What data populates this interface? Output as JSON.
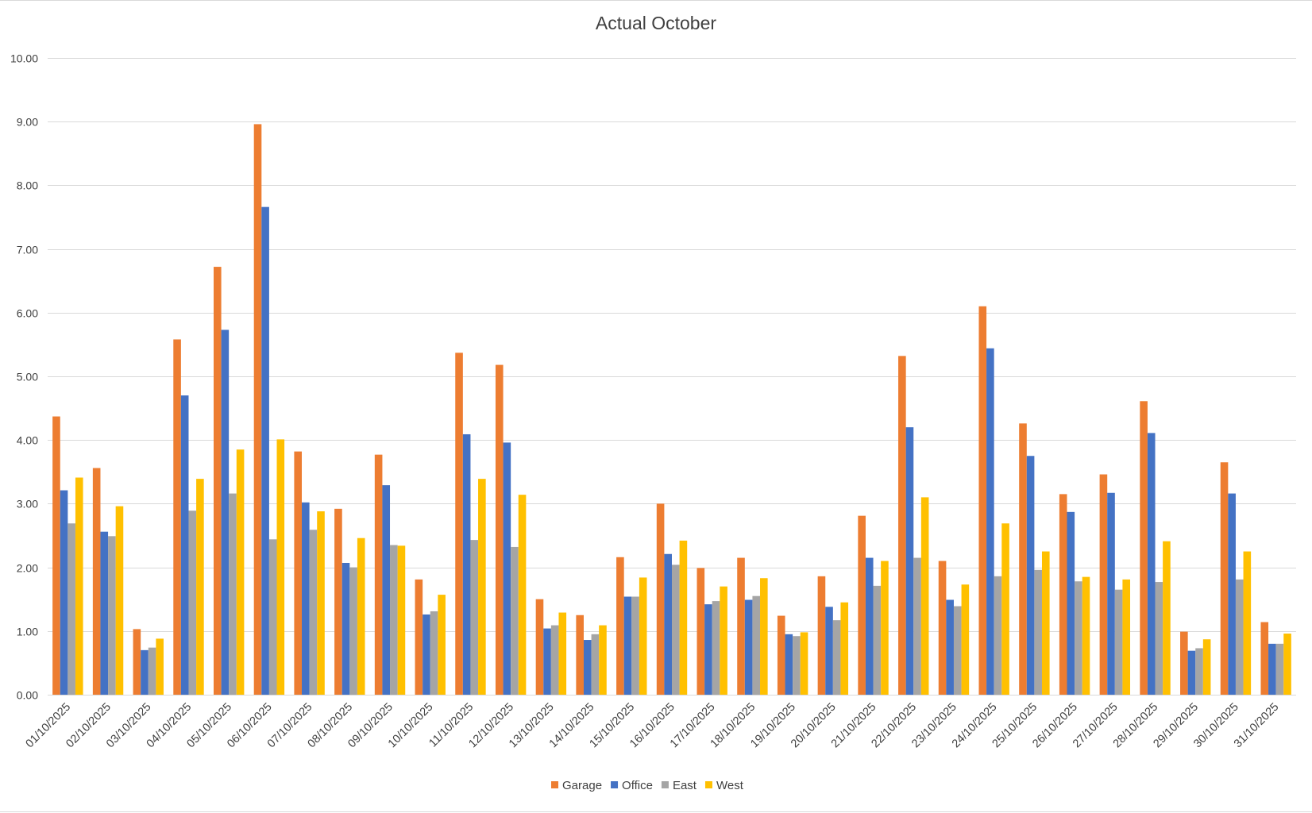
{
  "chart_data": {
    "type": "bar",
    "title": "Actual October",
    "xlabel": "",
    "ylabel": "",
    "ylim": [
      0,
      10
    ],
    "yticks": [
      "0.00",
      "1.00",
      "2.00",
      "3.00",
      "4.00",
      "5.00",
      "6.00",
      "7.00",
      "8.00",
      "9.00",
      "10.00"
    ],
    "grid": true,
    "legend_position": "bottom",
    "categories": [
      "01/10/2025",
      "02/10/2025",
      "03/10/2025",
      "04/10/2025",
      "05/10/2025",
      "06/10/2025",
      "07/10/2025",
      "08/10/2025",
      "09/10/2025",
      "10/10/2025",
      "11/10/2025",
      "12/10/2025",
      "13/10/2025",
      "14/10/2025",
      "15/10/2025",
      "16/10/2025",
      "17/10/2025",
      "18/10/2025",
      "19/10/2025",
      "20/10/2025",
      "21/10/2025",
      "22/10/2025",
      "23/10/2025",
      "24/10/2025",
      "25/10/2025",
      "26/10/2025",
      "27/10/2025",
      "28/10/2025",
      "29/10/2025",
      "30/10/2025",
      "31/10/2025"
    ],
    "series": [
      {
        "name": "Garage",
        "color": "#ED7D31",
        "values": [
          4.37,
          3.56,
          1.03,
          5.58,
          6.72,
          8.96,
          3.82,
          2.92,
          3.77,
          1.81,
          5.37,
          5.18,
          1.5,
          1.25,
          2.16,
          3.0,
          1.99,
          2.15,
          1.24,
          1.86,
          2.81,
          5.32,
          2.1,
          6.1,
          4.26,
          3.15,
          3.46,
          4.61,
          0.99,
          3.65,
          1.14
        ]
      },
      {
        "name": "Office",
        "color": "#4472C4",
        "values": [
          3.21,
          2.56,
          0.7,
          4.7,
          5.73,
          7.66,
          3.02,
          2.07,
          3.29,
          1.26,
          4.09,
          3.96,
          1.04,
          0.86,
          1.54,
          2.21,
          1.42,
          1.49,
          0.95,
          1.38,
          2.15,
          4.2,
          1.49,
          5.44,
          3.75,
          2.87,
          3.17,
          4.11,
          0.69,
          3.16,
          0.8
        ]
      },
      {
        "name": "East",
        "color": "#A5A5A5",
        "values": [
          2.69,
          2.49,
          0.74,
          2.89,
          3.16,
          2.44,
          2.59,
          2.0,
          2.35,
          1.31,
          2.43,
          2.32,
          1.09,
          0.95,
          1.54,
          2.04,
          1.47,
          1.55,
          0.92,
          1.17,
          1.71,
          2.15,
          1.39,
          1.86,
          1.96,
          1.78,
          1.65,
          1.77,
          0.73,
          1.81,
          0.8
        ]
      },
      {
        "name": "West",
        "color": "#FFC000",
        "values": [
          3.41,
          2.96,
          0.88,
          3.39,
          3.85,
          4.01,
          2.88,
          2.46,
          2.34,
          1.57,
          3.39,
          3.14,
          1.29,
          1.09,
          1.84,
          2.42,
          1.7,
          1.83,
          0.98,
          1.45,
          2.1,
          3.1,
          1.73,
          2.69,
          2.25,
          1.85,
          1.81,
          2.41,
          0.87,
          2.25,
          0.96
        ]
      }
    ]
  }
}
